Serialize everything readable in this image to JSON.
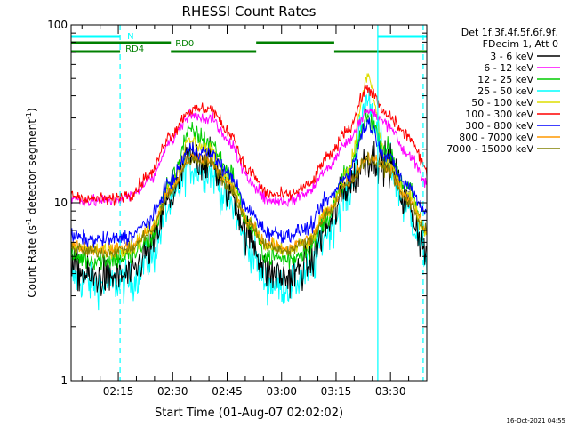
{
  "chart_data": {
    "type": "line",
    "title": "RHESSI Count Rates",
    "xlabel": "Start Time (01-Aug-07 02:02:02)",
    "ylabel": "Count Rate (s",
    "ylabel_sup": "-1",
    "ylabel_rest": " detector segment",
    "ylabel_sup2": "-1",
    "ylabel_close": ")",
    "y_scale": "log",
    "ylim": [
      1,
      100
    ],
    "y_ticks": [
      {
        "value": 1,
        "label": "1"
      },
      {
        "value": 10,
        "label": "10"
      },
      {
        "value": 100,
        "label": "100"
      }
    ],
    "xlim_minutes": [
      2.0,
      100.0
    ],
    "x_ticks": [
      {
        "minute": 15,
        "label": "02:15"
      },
      {
        "minute": 30,
        "label": "02:30"
      },
      {
        "minute": 45,
        "label": "02:45"
      },
      {
        "minute": 60,
        "label": "03:00"
      },
      {
        "minute": 75,
        "label": "03:15"
      },
      {
        "minute": 90,
        "label": "03:30"
      }
    ],
    "legend": {
      "placement": "right",
      "header": [
        "Det 1f,3f,4f,5f,6f,9f,",
        "FDecim 1, Att 0"
      ]
    },
    "series": [
      {
        "name": "3 - 6 keV",
        "color": "#000000",
        "values": [
          4.3,
          3.8,
          3.8,
          3.9,
          5.5,
          10.5,
          18,
          17,
          12,
          6.5,
          4.0,
          3.8,
          4.5,
          7.5,
          12.5,
          18,
          17,
          10,
          5.3
        ],
        "noise": 0.13
      },
      {
        "name": "6 - 12 keV",
        "color": "#ff00ff",
        "values": [
          10.5,
          10.2,
          10.3,
          10.8,
          13.5,
          22,
          31,
          30,
          22,
          13.5,
          10.3,
          10.2,
          11.5,
          16,
          22,
          33,
          28,
          19,
          13
        ],
        "noise": 0.04
      },
      {
        "name": "12 - 25 keV",
        "color": "#00cc00",
        "values": [
          5.0,
          4.8,
          4.8,
          5.0,
          6.2,
          13,
          25,
          22,
          15,
          7.5,
          5.0,
          4.8,
          5.5,
          8.5,
          15,
          30,
          20,
          12,
          7.0
        ],
        "noise": 0.07
      },
      {
        "name": "25 - 50 keV",
        "color": "#00ffff",
        "values": [
          3.8,
          3.5,
          3.5,
          3.6,
          4.8,
          9.5,
          16,
          15,
          10,
          5.5,
          3.5,
          3.4,
          4.0,
          7.0,
          11,
          38,
          17,
          9,
          5.0
        ],
        "noise": 0.13
      },
      {
        "name": "50 - 100 keV",
        "color": "#dddd00",
        "values": [
          5.8,
          5.4,
          5.4,
          5.6,
          7.0,
          12.5,
          22,
          20,
          13.5,
          7.5,
          5.6,
          5.4,
          6.0,
          9.0,
          15,
          50,
          17,
          11,
          7.0
        ],
        "noise": 0.05
      },
      {
        "name": "100 - 300 keV",
        "color": "#ff0000",
        "values": [
          11.0,
          10.5,
          10.5,
          11.2,
          14.5,
          24,
          33,
          34,
          25,
          15,
          11.2,
          11.0,
          12.5,
          18,
          26,
          44,
          31,
          24,
          15.5
        ],
        "noise": 0.04
      },
      {
        "name": "300 - 800 keV",
        "color": "#0000ff",
        "values": [
          6.5,
          6.2,
          6.2,
          6.5,
          8.0,
          13,
          20,
          19,
          14.5,
          9.0,
          6.8,
          6.6,
          7.2,
          10.5,
          14.5,
          28,
          18,
          12.5,
          9.0
        ],
        "noise": 0.05
      },
      {
        "name": "800 - 7000 keV",
        "color": "#ff9900",
        "values": [
          5.8,
          5.5,
          5.5,
          5.7,
          7.0,
          11.5,
          18,
          17.5,
          12.5,
          7.8,
          5.8,
          5.6,
          6.2,
          9.0,
          13,
          18,
          16,
          10.5,
          7.2
        ],
        "noise": 0.04
      },
      {
        "name": "7000 - 15000 keV",
        "color": "#808000",
        "values": [
          5.6,
          5.3,
          5.3,
          5.5,
          6.8,
          11.2,
          17.5,
          17,
          12.2,
          7.6,
          5.6,
          5.4,
          6.0,
          8.8,
          12.8,
          17.5,
          15.5,
          10.2,
          7.0
        ],
        "noise": 0.04
      }
    ],
    "series_x_minutes": [
      2,
      7.4,
      12.9,
      18.3,
      23.8,
      29.2,
      34.7,
      40.1,
      45.6,
      51,
      56.4,
      61.9,
      67.3,
      72.8,
      78.2,
      83.7,
      89.1,
      94.6,
      100
    ],
    "flags": [
      {
        "label": "N",
        "color": "#00ffff",
        "row": 1,
        "segments": [
          [
            2.0,
            15.5
          ],
          [
            86.5,
            100.0
          ]
        ]
      },
      {
        "label": "RD0",
        "color": "#008000",
        "row": 2,
        "segments": [
          [
            2.0,
            29.5
          ],
          [
            53.0,
            74.5
          ]
        ]
      },
      {
        "label": "RD4",
        "color": "#008000",
        "row": 3,
        "segments": [
          [
            2.0,
            15.5
          ],
          [
            29.5,
            53.0
          ],
          [
            74.5,
            100.0
          ]
        ]
      }
    ],
    "vlines": [
      {
        "minute": 15.5,
        "color": "#00ffff",
        "style": "dashed"
      },
      {
        "minute": 86.5,
        "color": "#00ffff",
        "style": "solid"
      },
      {
        "minute": 99.0,
        "color": "#00ffff",
        "style": "dashed"
      }
    ]
  },
  "footer": {
    "timestamp": "16-Oct-2021 04:55"
  }
}
